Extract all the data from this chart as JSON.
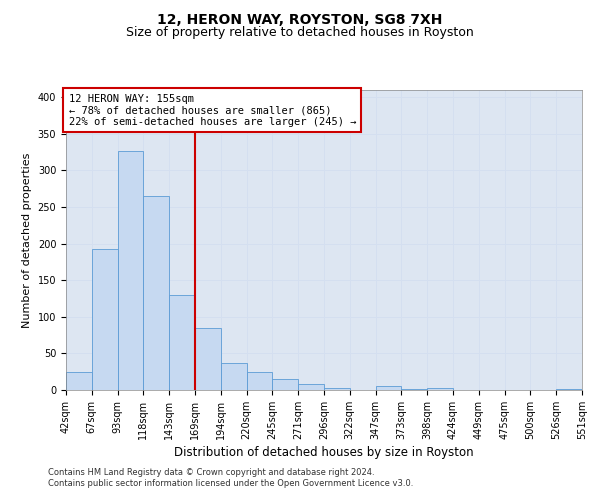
{
  "title": "12, HERON WAY, ROYSTON, SG8 7XH",
  "subtitle": "Size of property relative to detached houses in Royston",
  "xlabel": "Distribution of detached houses by size in Royston",
  "ylabel": "Number of detached properties",
  "bar_values": [
    25,
    193,
    327,
    265,
    130,
    85,
    37,
    25,
    15,
    8,
    3,
    0,
    5,
    2,
    3,
    0,
    0,
    0,
    0,
    2
  ],
  "bar_labels": [
    "42sqm",
    "67sqm",
    "93sqm",
    "118sqm",
    "143sqm",
    "169sqm",
    "194sqm",
    "220sqm",
    "245sqm",
    "271sqm",
    "296sqm",
    "322sqm",
    "347sqm",
    "373sqm",
    "398sqm",
    "424sqm",
    "449sqm",
    "475sqm",
    "500sqm",
    "526sqm",
    "551sqm"
  ],
  "bar_color": "#c6d9f1",
  "bar_edge_color": "#5b9bd5",
  "vline_color": "#cc0000",
  "vline_pos": 4.5,
  "annotation_text": "12 HERON WAY: 155sqm\n← 78% of detached houses are smaller (865)\n22% of semi-detached houses are larger (245) →",
  "annotation_box_color": "#ffffff",
  "annotation_box_edge_color": "#cc0000",
  "ylim": [
    0,
    410
  ],
  "yticks": [
    0,
    50,
    100,
    150,
    200,
    250,
    300,
    350,
    400
  ],
  "grid_color": "#d4dff0",
  "background_color": "#dde6f2",
  "footnote_line1": "Contains HM Land Registry data © Crown copyright and database right 2024.",
  "footnote_line2": "Contains public sector information licensed under the Open Government Licence v3.0.",
  "title_fontsize": 10,
  "subtitle_fontsize": 9,
  "tick_fontsize": 7,
  "ylabel_fontsize": 8,
  "xlabel_fontsize": 8.5,
  "annot_fontsize": 7.5
}
